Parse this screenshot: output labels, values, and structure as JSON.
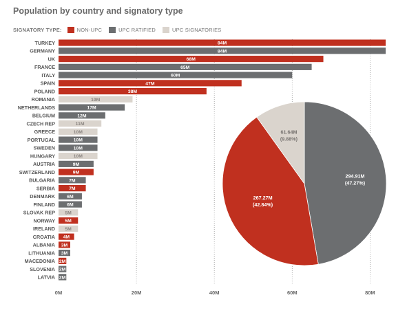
{
  "chart_data": [
    {
      "type": "bar",
      "orientation": "horizontal",
      "title": "Population by country and signatory type",
      "legend_title": "SIGNATORY TYPE:",
      "legend": [
        {
          "key": "nonupc",
          "label": "NON-UPC",
          "color": "#c0301f"
        },
        {
          "key": "ratified",
          "label": "UPC RATIFIED",
          "color": "#6c6e70"
        },
        {
          "key": "signatories",
          "label": "UPC SIGNATORIES",
          "color": "#dad4cd"
        }
      ],
      "legend_position": "top-left",
      "xlim": [
        0,
        85
      ],
      "x_ticks": [
        0,
        20,
        40,
        60,
        80
      ],
      "x_tick_labels": [
        "0M",
        "20M",
        "40M",
        "60M",
        "80M"
      ],
      "grid": "vertical dotted lines at tick positions",
      "bars": [
        {
          "country": "TURKEY",
          "value": 84,
          "label": "84M",
          "type": "nonupc"
        },
        {
          "country": "GERMANY",
          "value": 84,
          "label": "84M",
          "type": "ratified"
        },
        {
          "country": "UK",
          "value": 68,
          "label": "68M",
          "type": "nonupc"
        },
        {
          "country": "FRANCE",
          "value": 65,
          "label": "65M",
          "type": "ratified"
        },
        {
          "country": "ITALY",
          "value": 60,
          "label": "60M",
          "type": "ratified"
        },
        {
          "country": "SPAIN",
          "value": 47,
          "label": "47M",
          "type": "nonupc"
        },
        {
          "country": "POLAND",
          "value": 38,
          "label": "38M",
          "type": "nonupc"
        },
        {
          "country": "ROMANIA",
          "value": 19,
          "label": "19M",
          "type": "signatories"
        },
        {
          "country": "NETHERLANDS",
          "value": 17,
          "label": "17M",
          "type": "ratified"
        },
        {
          "country": "BELGIUM",
          "value": 12,
          "label": "12M",
          "type": "ratified"
        },
        {
          "country": "CZECH REP",
          "value": 11,
          "label": "11M",
          "type": "signatories"
        },
        {
          "country": "GREECE",
          "value": 10,
          "label": "10M",
          "type": "signatories"
        },
        {
          "country": "PORTUGAL",
          "value": 10,
          "label": "10M",
          "type": "ratified"
        },
        {
          "country": "SWEDEN",
          "value": 10,
          "label": "10M",
          "type": "ratified"
        },
        {
          "country": "HUNGARY",
          "value": 10,
          "label": "10M",
          "type": "signatories"
        },
        {
          "country": "AUSTRIA",
          "value": 9,
          "label": "9M",
          "type": "ratified"
        },
        {
          "country": "SWITZERLAND",
          "value": 9,
          "label": "9M",
          "type": "nonupc"
        },
        {
          "country": "BULGARIA",
          "value": 7,
          "label": "7M",
          "type": "ratified"
        },
        {
          "country": "SERBIA",
          "value": 7,
          "label": "7M",
          "type": "nonupc"
        },
        {
          "country": "DENMARK",
          "value": 6,
          "label": "6M",
          "type": "ratified"
        },
        {
          "country": "FINLAND",
          "value": 6,
          "label": "6M",
          "type": "ratified"
        },
        {
          "country": "SLOVAK REP",
          "value": 5,
          "label": "5M",
          "type": "signatories"
        },
        {
          "country": "NORWAY",
          "value": 5,
          "label": "5M",
          "type": "nonupc"
        },
        {
          "country": "IRELAND",
          "value": 5,
          "label": "5M",
          "type": "signatories"
        },
        {
          "country": "CROATIA",
          "value": 4,
          "label": "4M",
          "type": "nonupc"
        },
        {
          "country": "ALBANIA",
          "value": 3,
          "label": "3M",
          "type": "nonupc"
        },
        {
          "country": "LITHUANIA",
          "value": 3,
          "label": "3M",
          "type": "ratified"
        },
        {
          "country": "MACEDONIA",
          "value": 2,
          "label": "2M",
          "type": "nonupc"
        },
        {
          "country": "SLOVENIA",
          "value": 2,
          "label": "2M",
          "type": "ratified"
        },
        {
          "country": "LATVIA",
          "value": 2,
          "label": "2M",
          "type": "ratified"
        }
      ]
    },
    {
      "type": "pie",
      "slices": [
        {
          "type": "ratified",
          "value": 294.91,
          "label": "294.91M",
          "percent_label": "(47.27%)",
          "color": "#6c6e70"
        },
        {
          "type": "nonupc",
          "value": 267.27,
          "label": "267.27M",
          "percent_label": "(42.84%)",
          "color": "#c0301f"
        },
        {
          "type": "signatories",
          "value": 61.64,
          "label": "61.64M",
          "percent_label": "(9.88%)",
          "color": "#dad4cd"
        }
      ]
    }
  ]
}
